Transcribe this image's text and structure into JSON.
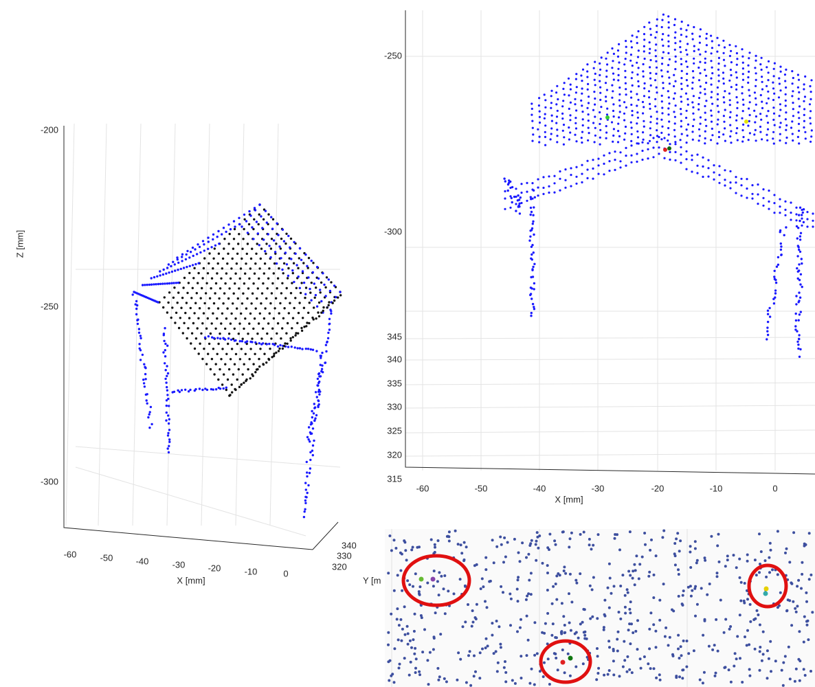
{
  "left_plot": {
    "z_label": "Z [mm]",
    "z_ticks": [
      "-200",
      "-250",
      "-300"
    ],
    "x_ticks": [
      "-60",
      "-50",
      "-40",
      "-30",
      "-20",
      "-10",
      "0"
    ],
    "x_label": "X [mm]",
    "y_ticks": [
      "340",
      "330",
      "320"
    ]
  },
  "top_right_plot": {
    "z_ticks": [
      "-250",
      "-300"
    ],
    "y_ticks": [
      "345",
      "340",
      "335",
      "330",
      "325",
      "320",
      "315"
    ],
    "x_ticks": [
      "-60",
      "-50",
      "-40",
      "-30",
      "-20",
      "-10",
      "0"
    ],
    "x_label": "X [mm]"
  },
  "bottom_right_plot": {
    "y_label": "Y [m"
  }
}
